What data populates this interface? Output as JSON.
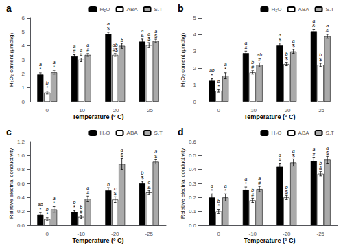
{
  "chart_data": [
    {
      "type": "bar",
      "title": "a",
      "xlabel": "Temperature (° C)",
      "ylabel": "H₂O₂ content (μmol/g)",
      "categories": [
        "0",
        "-10",
        "-20",
        "-25"
      ],
      "ylim": [
        0,
        6
      ],
      "yticks": [
        0,
        1,
        2,
        3,
        4,
        5,
        6
      ],
      "grid": false,
      "legend": "upper right",
      "series": [
        {
          "name": "H₂O",
          "color": "black",
          "values": [
            1.95,
            3.25,
            4.85,
            4.3
          ],
          "errors": [
            0.12,
            0.12,
            0.12,
            0.18
          ],
          "symbols": [
            "*",
            "#",
            "$",
            "&"
          ],
          "letters": [
            "a",
            "a",
            "a",
            "a"
          ]
        },
        {
          "name": "ABA",
          "color": "white",
          "values": [
            0.65,
            3.0,
            3.35,
            4.05
          ],
          "errors": [
            0.1,
            0.12,
            0.1,
            0.18
          ],
          "symbols": [
            "*",
            "#",
            "#$",
            "$"
          ],
          "letters": [
            "b",
            "a",
            "ab",
            "a"
          ]
        },
        {
          "name": "S.T",
          "color": "#aaaaaa",
          "values": [
            2.1,
            3.35,
            4.0,
            4.35
          ],
          "errors": [
            0.12,
            0.1,
            0.18,
            0.12
          ],
          "symbols": [
            "*",
            "#",
            null,
            "$"
          ],
          "letters": [
            "a",
            "a",
            "b",
            "a"
          ]
        }
      ]
    },
    {
      "type": "bar",
      "title": "b",
      "xlabel": "Temperature (° C)",
      "ylabel": "H₂O₂ content (μmol/g)",
      "categories": [
        "0",
        "-10",
        "-20",
        "-25"
      ],
      "ylim": [
        0,
        5
      ],
      "yticks": [
        0,
        1,
        2,
        3,
        4,
        5
      ],
      "grid": false,
      "legend": "upper right",
      "series": [
        {
          "name": "H₂O",
          "color": "black",
          "values": [
            1.25,
            2.9,
            3.35,
            4.2
          ],
          "errors": [
            0.12,
            0.12,
            0.15,
            0.12
          ],
          "symbols": [
            "*",
            "#",
            "$",
            "&"
          ],
          "letters": [
            "ab",
            "a",
            "a",
            "a"
          ]
        },
        {
          "name": "ABA",
          "color": "white",
          "values": [
            0.65,
            1.75,
            2.25,
            2.2
          ],
          "errors": [
            0.08,
            0.1,
            0.1,
            0.1
          ],
          "symbols": [
            "*",
            "#",
            "$",
            "$"
          ],
          "letters": [
            "b",
            "b",
            "b",
            "b"
          ]
        },
        {
          "name": "S.T",
          "color": "#aaaaaa",
          "values": [
            1.55,
            2.2,
            3.0,
            3.9
          ],
          "errors": [
            0.18,
            0.12,
            0.12,
            0.12
          ],
          "symbols": [
            "*",
            "#",
            "$",
            "&"
          ],
          "letters": [
            "a",
            "ab",
            "a",
            "a"
          ]
        }
      ]
    },
    {
      "type": "bar",
      "title": "c",
      "xlabel": "Temperature (° C)",
      "ylabel": "Relative electrial conductivity",
      "categories": [
        "0",
        "-10",
        "-20",
        "-25"
      ],
      "ylim": [
        0,
        1.2
      ],
      "yticks": [
        {
          "value": 0,
          "label": "0.0"
        },
        0.2,
        0.4,
        0.6,
        0.8,
        {
          "value": 1,
          "label": "1.0"
        },
        1.2
      ],
      "grid": false,
      "legend": "upper right",
      "series": [
        {
          "name": "H₂O",
          "color": "black",
          "values": [
            0.15,
            0.19,
            0.5,
            0.6
          ],
          "errors": [
            0.035,
            0.025,
            0.04,
            0.03
          ],
          "symbols": [
            "*",
            "*",
            null,
            "$"
          ],
          "letters": [
            "ab",
            "b",
            "b",
            "b"
          ]
        },
        {
          "name": "ABA",
          "color": "white",
          "values": [
            0.09,
            0.12,
            0.37,
            0.47
          ],
          "errors": [
            0.02,
            0.02,
            0.04,
            0.03
          ],
          "symbols": [
            "*",
            "#",
            "$",
            "&"
          ],
          "letters": [
            "b",
            "b",
            "c",
            "c"
          ]
        },
        {
          "name": "S.T",
          "color": "#aaaaaa",
          "values": [
            0.23,
            0.38,
            0.88,
            0.91
          ],
          "errors": [
            0.04,
            0.04,
            0.08,
            0.03
          ],
          "symbols": [
            "*",
            "#",
            "$",
            "$"
          ],
          "letters": [
            "a",
            "a",
            "a",
            "a"
          ]
        }
      ]
    },
    {
      "type": "bar",
      "title": "d",
      "xlabel": "Temperature (° C)",
      "ylabel": "Relative electrial conductivity",
      "categories": [
        "0",
        "-10",
        "-20",
        "-25"
      ],
      "ylim": [
        0,
        0.6
      ],
      "yticks": [
        {
          "value": 0,
          "label": "0.0"
        },
        0.1,
        0.2,
        0.3,
        0.4,
        0.5,
        0.6
      ],
      "grid": false,
      "legend": "upper right",
      "series": [
        {
          "name": "H₂O",
          "color": "black",
          "values": [
            0.2,
            0.255,
            0.42,
            0.46
          ],
          "errors": [
            0.025,
            0.02,
            0.025,
            0.025
          ],
          "symbols": [
            "*",
            "*",
            "#",
            "#"
          ],
          "letters": [
            "a",
            "a",
            "a",
            "a"
          ]
        },
        {
          "name": "ABA",
          "color": "white",
          "values": [
            0.1,
            0.18,
            0.2,
            0.37
          ],
          "errors": [
            0.015,
            0.015,
            0.015,
            0.015
          ],
          "symbols": [
            "*",
            "#",
            "$",
            "&"
          ],
          "letters": [
            "b",
            "b",
            "b",
            "b"
          ]
        },
        {
          "name": "S.T",
          "color": "#aaaaaa",
          "values": [
            0.2,
            0.26,
            0.45,
            0.47
          ],
          "errors": [
            0.025,
            0.02,
            0.025,
            0.025
          ],
          "symbols": [
            "*",
            "#",
            "$",
            "$"
          ],
          "letters": [
            "a",
            "a",
            "a",
            "a"
          ]
        }
      ]
    }
  ]
}
